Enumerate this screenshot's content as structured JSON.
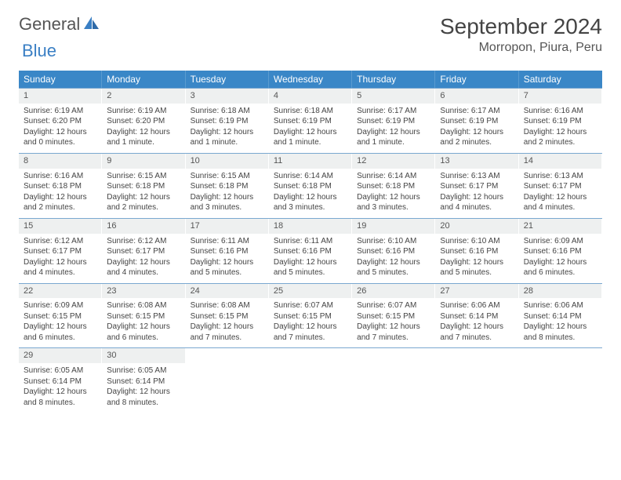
{
  "logo": {
    "text1": "General",
    "text2": "Blue"
  },
  "title": "September 2024",
  "location": "Morropon, Piura, Peru",
  "weekdays": [
    "Sunday",
    "Monday",
    "Tuesday",
    "Wednesday",
    "Thursday",
    "Friday",
    "Saturday"
  ],
  "colors": {
    "header_bg": "#3a87c7",
    "header_text": "#ffffff",
    "daynum_bg": "#eef0f0",
    "border": "#7aa8d0",
    "logo_blue": "#3a7fc4"
  },
  "days": [
    {
      "n": 1,
      "sunrise": "6:19 AM",
      "sunset": "6:20 PM",
      "daylight": "12 hours and 0 minutes."
    },
    {
      "n": 2,
      "sunrise": "6:19 AM",
      "sunset": "6:20 PM",
      "daylight": "12 hours and 1 minute."
    },
    {
      "n": 3,
      "sunrise": "6:18 AM",
      "sunset": "6:19 PM",
      "daylight": "12 hours and 1 minute."
    },
    {
      "n": 4,
      "sunrise": "6:18 AM",
      "sunset": "6:19 PM",
      "daylight": "12 hours and 1 minute."
    },
    {
      "n": 5,
      "sunrise": "6:17 AM",
      "sunset": "6:19 PM",
      "daylight": "12 hours and 1 minute."
    },
    {
      "n": 6,
      "sunrise": "6:17 AM",
      "sunset": "6:19 PM",
      "daylight": "12 hours and 2 minutes."
    },
    {
      "n": 7,
      "sunrise": "6:16 AM",
      "sunset": "6:19 PM",
      "daylight": "12 hours and 2 minutes."
    },
    {
      "n": 8,
      "sunrise": "6:16 AM",
      "sunset": "6:18 PM",
      "daylight": "12 hours and 2 minutes."
    },
    {
      "n": 9,
      "sunrise": "6:15 AM",
      "sunset": "6:18 PM",
      "daylight": "12 hours and 2 minutes."
    },
    {
      "n": 10,
      "sunrise": "6:15 AM",
      "sunset": "6:18 PM",
      "daylight": "12 hours and 3 minutes."
    },
    {
      "n": 11,
      "sunrise": "6:14 AM",
      "sunset": "6:18 PM",
      "daylight": "12 hours and 3 minutes."
    },
    {
      "n": 12,
      "sunrise": "6:14 AM",
      "sunset": "6:18 PM",
      "daylight": "12 hours and 3 minutes."
    },
    {
      "n": 13,
      "sunrise": "6:13 AM",
      "sunset": "6:17 PM",
      "daylight": "12 hours and 4 minutes."
    },
    {
      "n": 14,
      "sunrise": "6:13 AM",
      "sunset": "6:17 PM",
      "daylight": "12 hours and 4 minutes."
    },
    {
      "n": 15,
      "sunrise": "6:12 AM",
      "sunset": "6:17 PM",
      "daylight": "12 hours and 4 minutes."
    },
    {
      "n": 16,
      "sunrise": "6:12 AM",
      "sunset": "6:17 PM",
      "daylight": "12 hours and 4 minutes."
    },
    {
      "n": 17,
      "sunrise": "6:11 AM",
      "sunset": "6:16 PM",
      "daylight": "12 hours and 5 minutes."
    },
    {
      "n": 18,
      "sunrise": "6:11 AM",
      "sunset": "6:16 PM",
      "daylight": "12 hours and 5 minutes."
    },
    {
      "n": 19,
      "sunrise": "6:10 AM",
      "sunset": "6:16 PM",
      "daylight": "12 hours and 5 minutes."
    },
    {
      "n": 20,
      "sunrise": "6:10 AM",
      "sunset": "6:16 PM",
      "daylight": "12 hours and 5 minutes."
    },
    {
      "n": 21,
      "sunrise": "6:09 AM",
      "sunset": "6:16 PM",
      "daylight": "12 hours and 6 minutes."
    },
    {
      "n": 22,
      "sunrise": "6:09 AM",
      "sunset": "6:15 PM",
      "daylight": "12 hours and 6 minutes."
    },
    {
      "n": 23,
      "sunrise": "6:08 AM",
      "sunset": "6:15 PM",
      "daylight": "12 hours and 6 minutes."
    },
    {
      "n": 24,
      "sunrise": "6:08 AM",
      "sunset": "6:15 PM",
      "daylight": "12 hours and 7 minutes."
    },
    {
      "n": 25,
      "sunrise": "6:07 AM",
      "sunset": "6:15 PM",
      "daylight": "12 hours and 7 minutes."
    },
    {
      "n": 26,
      "sunrise": "6:07 AM",
      "sunset": "6:15 PM",
      "daylight": "12 hours and 7 minutes."
    },
    {
      "n": 27,
      "sunrise": "6:06 AM",
      "sunset": "6:14 PM",
      "daylight": "12 hours and 7 minutes."
    },
    {
      "n": 28,
      "sunrise": "6:06 AM",
      "sunset": "6:14 PM",
      "daylight": "12 hours and 8 minutes."
    },
    {
      "n": 29,
      "sunrise": "6:05 AM",
      "sunset": "6:14 PM",
      "daylight": "12 hours and 8 minutes."
    },
    {
      "n": 30,
      "sunrise": "6:05 AM",
      "sunset": "6:14 PM",
      "daylight": "12 hours and 8 minutes."
    }
  ],
  "labels": {
    "sunrise_prefix": "Sunrise: ",
    "sunset_prefix": "Sunset: ",
    "daylight_prefix": "Daylight: "
  }
}
